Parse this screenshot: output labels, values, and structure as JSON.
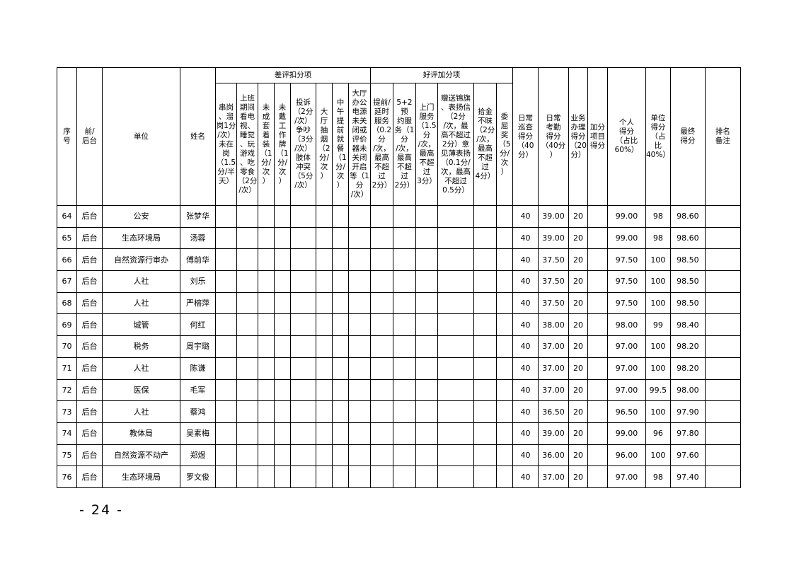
{
  "table": {
    "group_headers": {
      "deduct": "差评扣分项",
      "bonus": "好评加分项"
    },
    "headers": {
      "seq": "序\n号",
      "side": "前/\n后台",
      "unit": "单位",
      "name": "姓名",
      "d1": "串岗\n、溜\n岗1分\n/次）\n未在\n岗\n（1.5\n分/半\n天）",
      "d2": "上班\n期间\n看电\n视、\n睡觉\n、玩\n游戏\n、吃\n零食\n（2分\n/次）",
      "d3": "未\n成\n套\n着\n装\n（1\n分/\n次\n）",
      "d4": "未\n戴\n工\n作\n牌\n（1\n分/\n次\n）",
      "d5": "投诉\n（2分\n/次）\n争吵\n（3分\n/次）\n肢体\n冲突\n（5分\n/次）",
      "d6": "大\n厅\n抽\n烟\n（2\n分/\n次\n）",
      "d7": "中\n午\n提\n前\n就\n餐\n（1\n分/\n次\n）",
      "d8": "大厅\n办公\n电源\n未关\n闭或\n评价\n器未\n关闭\n开启\n等（1\n分\n/次）",
      "b1": "提前/\n延时\n服务\n（0.2\n分\n/次，\n最高\n不超\n过\n2分）",
      "b2": "5+2预\n约服\n务（1\n分\n/次，\n最高\n不超\n过\n2分）",
      "b3": "上门\n服务\n（1.5\n分\n/次，\n最高\n不超\n过\n3分）",
      "b4": "赠送锦旗\n、表扬信\n（2分\n/次，最\n高不超过\n2分）意\n见薄表扬\n（0.1分/\n次，最高\n不超过\n0.5分）",
      "b5": "拾金\n不昧\n（2分\n/次，\n最高\n不超\n过\n4分）",
      "b6": "委\n屈\n奖\n（5\n分/\n次\n）",
      "patrol": "日常\n巡查\n得分\n（40\n分）",
      "attend": "日常\n考勤\n得分\n（40分\n）",
      "business": "业务\n办理\n得分\n（20\n分）",
      "bonus_items": "加分\n项目\n得分",
      "personal": "个人\n得分\n（占比\n60%）",
      "unit_score": "单位\n得分\n（占\n比\n40%）",
      "final": "最终\n得分",
      "rank": "排名\n备注"
    },
    "rows": [
      {
        "seq": "64",
        "side": "后台",
        "unit": "公安",
        "name": "张梦华",
        "patrol": "40",
        "attend": "39.00",
        "business": "20",
        "personal": "99.00",
        "unit_score": "98",
        "final": "98.60"
      },
      {
        "seq": "65",
        "side": "后台",
        "unit": "生态环境局",
        "name": "汤蓉",
        "patrol": "40",
        "attend": "39.00",
        "business": "20",
        "personal": "99.00",
        "unit_score": "98",
        "final": "98.60"
      },
      {
        "seq": "66",
        "side": "后台",
        "unit": "自然资源行审办",
        "name": "傅前华",
        "patrol": "40",
        "attend": "37.50",
        "business": "20",
        "personal": "97.50",
        "unit_score": "100",
        "final": "98.50"
      },
      {
        "seq": "67",
        "side": "后台",
        "unit": "人社",
        "name": "刘乐",
        "patrol": "40",
        "attend": "37.50",
        "business": "20",
        "personal": "97.50",
        "unit_score": "100",
        "final": "98.50"
      },
      {
        "seq": "68",
        "side": "后台",
        "unit": "人社",
        "name": "严榕萍",
        "patrol": "40",
        "attend": "37.50",
        "business": "20",
        "personal": "97.50",
        "unit_score": "100",
        "final": "98.50"
      },
      {
        "seq": "69",
        "side": "后台",
        "unit": "城管",
        "name": "何红",
        "patrol": "40",
        "attend": "38.00",
        "business": "20",
        "personal": "98.00",
        "unit_score": "99",
        "final": "98.40"
      },
      {
        "seq": "70",
        "side": "后台",
        "unit": "税务",
        "name": "周宇璐",
        "patrol": "40",
        "attend": "37.00",
        "business": "20",
        "personal": "97.00",
        "unit_score": "100",
        "final": "98.20"
      },
      {
        "seq": "71",
        "side": "后台",
        "unit": "人社",
        "name": "陈谦",
        "patrol": "40",
        "attend": "37.00",
        "business": "20",
        "personal": "97.00",
        "unit_score": "100",
        "final": "98.20"
      },
      {
        "seq": "72",
        "side": "后台",
        "unit": "医保",
        "name": "毛军",
        "patrol": "40",
        "attend": "37.00",
        "business": "20",
        "personal": "97.00",
        "unit_score": "99.5",
        "final": "98.00"
      },
      {
        "seq": "73",
        "side": "后台",
        "unit": "人社",
        "name": "蔡鸿",
        "patrol": "40",
        "attend": "36.50",
        "business": "20",
        "personal": "96.50",
        "unit_score": "100",
        "final": "97.90"
      },
      {
        "seq": "74",
        "side": "后台",
        "unit": "教体局",
        "name": "吴素梅",
        "patrol": "40",
        "attend": "39.00",
        "business": "20",
        "personal": "99.00",
        "unit_score": "96",
        "final": "97.80"
      },
      {
        "seq": "75",
        "side": "后台",
        "unit": "自然资源不动产",
        "name": "郑煜",
        "patrol": "40",
        "attend": "36.00",
        "business": "20",
        "personal": "96.00",
        "unit_score": "100",
        "final": "97.60"
      },
      {
        "seq": "76",
        "side": "后台",
        "unit": "生态环境局",
        "name": "罗文俊",
        "patrol": "40",
        "attend": "37.00",
        "business": "20",
        "personal": "97.00",
        "unit_score": "98",
        "final": "97.40"
      }
    ]
  },
  "page_number": "- 24 -"
}
